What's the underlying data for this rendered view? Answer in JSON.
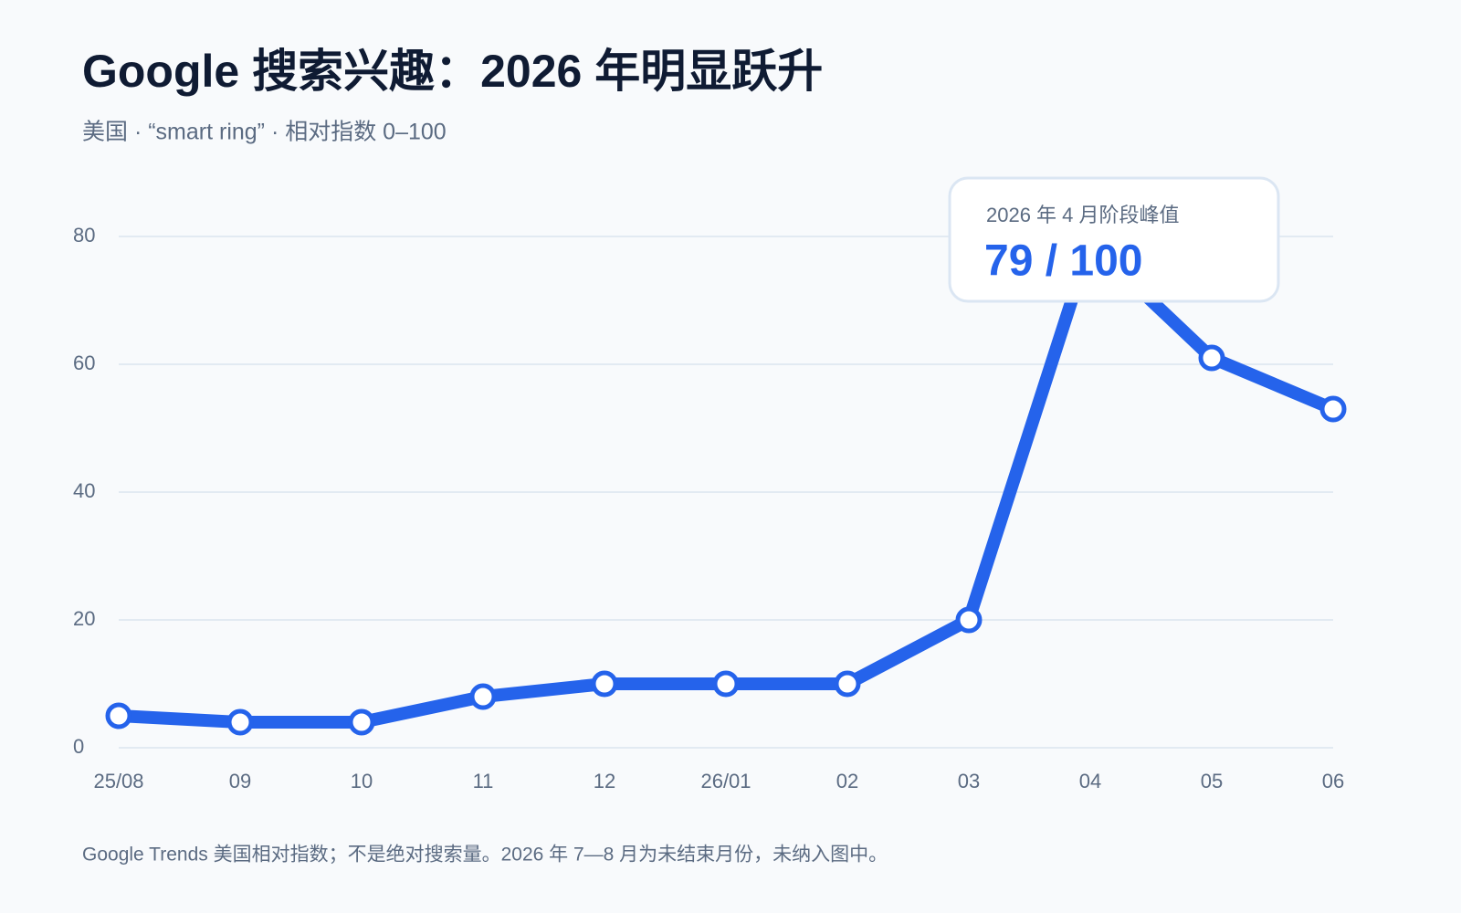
{
  "chart_data": {
    "type": "line",
    "title": "Google 搜索兴趣：2026 年明显跃升",
    "subtitle": "美国 · “smart ring” · 相对指数 0–100",
    "categories": [
      "25/08",
      "09",
      "10",
      "11",
      "12",
      "26/01",
      "02",
      "03",
      "04",
      "05",
      "06"
    ],
    "values": [
      5,
      4,
      4,
      8,
      10,
      10,
      10,
      20,
      79,
      61,
      53
    ],
    "color": "#2563eb",
    "ylim": [
      0,
      80
    ],
    "yticks": [
      0,
      20,
      40,
      60,
      80
    ],
    "grid": true,
    "annotation": {
      "label": "2026 年 4 月阶段峰值",
      "text": "79 / 100"
    },
    "footnote": "Google Trends 美国相对指数；不是绝对搜索量。2026 年 7—8 月为未结束月份，未纳入图中。"
  }
}
